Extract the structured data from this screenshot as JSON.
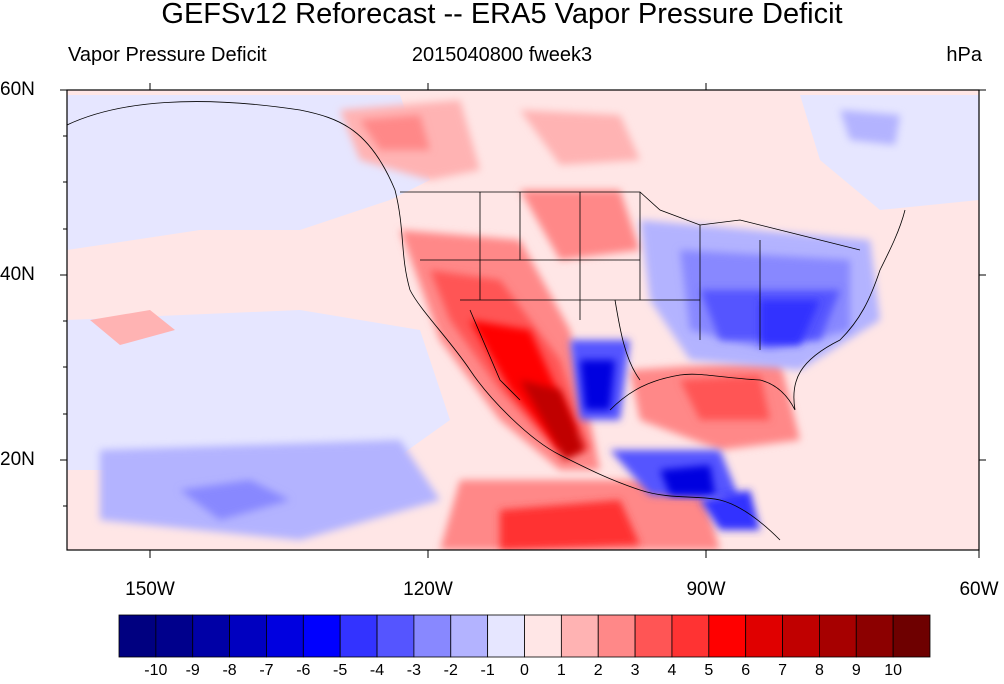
{
  "header": {
    "title": "GEFSv12 Reforecast -- ERA5 Vapor Pressure Deficit",
    "left": "Vapor Pressure Deficit",
    "center": "2015040800 fweek3",
    "right": "hPa"
  },
  "axes": {
    "lat_labels": [
      "60N",
      "40N",
      "20N"
    ],
    "lon_labels": [
      "150W",
      "120W",
      "90W",
      "60W"
    ]
  },
  "colorbar": {
    "labels": [
      "-10",
      "-9",
      "-8",
      "-7",
      "-6",
      "-5",
      "-4",
      "-3",
      "-2",
      "-1",
      "0",
      "1",
      "2",
      "3",
      "4",
      "5",
      "6",
      "7",
      "8",
      "9",
      "10"
    ],
    "colors": [
      "#000080",
      "#00008c",
      "#0000a6",
      "#0000c0",
      "#0000e0",
      "#0000ff",
      "#3333ff",
      "#5555ff",
      "#8888ff",
      "#b3b3ff",
      "#e6e6ff",
      "#ffe6e6",
      "#ffb3b3",
      "#ff8888",
      "#ff5555",
      "#ff3333",
      "#ff0000",
      "#e00000",
      "#c00000",
      "#a60000",
      "#8c0000",
      "#6e0000"
    ]
  }
}
